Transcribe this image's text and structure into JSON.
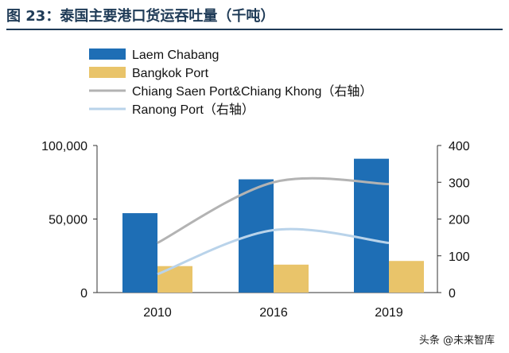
{
  "figure_title": "图 23：泰国主要港口货运吞吐量（千吨）",
  "watermark": "头条 @未来智库",
  "chart_data": {
    "type": "bar",
    "title": "",
    "categories": [
      "2010",
      "2016",
      "2019"
    ],
    "ylim": [
      0,
      100000
    ],
    "y2lim": [
      0,
      400
    ],
    "yticks": [
      "0",
      "50,000",
      "100,000"
    ],
    "y2ticks": [
      "0",
      "100",
      "200",
      "300",
      "400"
    ],
    "legend_position": "top-left",
    "grid": false,
    "series": [
      {
        "name": "Laem Chabang",
        "kind": "bar",
        "axis": "left",
        "color": "#1e6eb5",
        "values": [
          54000,
          77000,
          91000
        ]
      },
      {
        "name": "Bangkok Port",
        "kind": "bar",
        "axis": "left",
        "color": "#e9c46a",
        "values": [
          18000,
          19000,
          21500
        ]
      },
      {
        "name": "Chiang Saen Port&Chiang Khong（右轴）",
        "kind": "line",
        "axis": "right",
        "color": "#b3b3b3",
        "values": [
          135,
          300,
          295
        ]
      },
      {
        "name": "Ranong Port（右轴）",
        "kind": "line",
        "axis": "right",
        "color": "#b9d3ea",
        "values": [
          50,
          170,
          135
        ]
      }
    ]
  }
}
